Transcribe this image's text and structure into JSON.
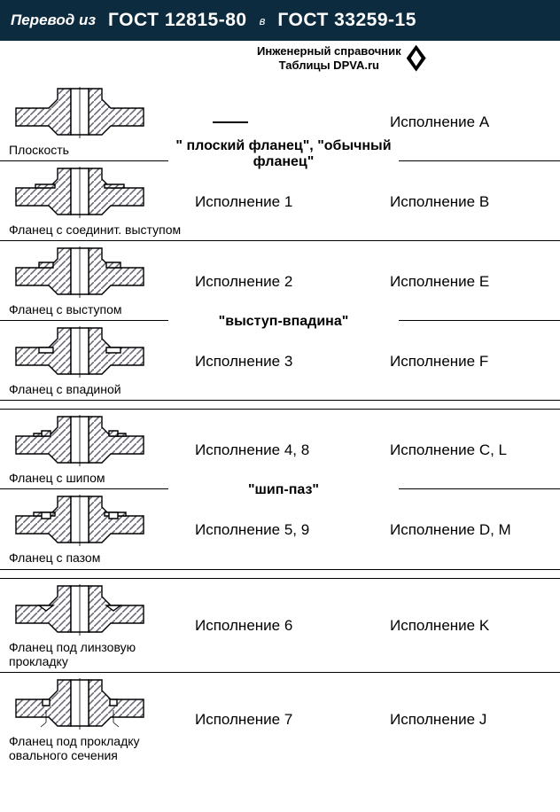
{
  "header": {
    "translateFrom": "Перевод из",
    "gost1": "ГОСТ 12815-80",
    "connector": "в",
    "gost2": "ГОСТ 33259-15"
  },
  "watermark": {
    "line1": "Инженерный справочник",
    "line2": "Таблицы DPVA.ru"
  },
  "rows": [
    {
      "caption": "Плоскость",
      "col2": "—",
      "col3": "Исполнение A",
      "group": "\" плоский фланец\", \"обычный фланец\"",
      "shape": "flat"
    },
    {
      "caption": "Фланец с соединит. выступом",
      "col2": "Исполнение 1",
      "col3": "Исполнение B",
      "shape": "raised"
    },
    {
      "caption": "Фланец с выступом",
      "col2": "Исполнение 2",
      "col3": "Исполнение E",
      "group": "\"выступ-впадина\"",
      "shape": "male"
    },
    {
      "caption": "Фланец с впадиной",
      "col2": "Исполнение  3",
      "col3": "Исполнение  F",
      "shape": "female"
    },
    {
      "caption": "Фланец с шипом",
      "col2": "Исполнение 4, 8",
      "col3": "Исполнение C, L",
      "group": "\"шип-паз\"",
      "shape": "tongue"
    },
    {
      "caption": "Фланец с пазом",
      "col2": "Исполнение  5, 9",
      "col3": "Исполнение  D, M",
      "shape": "groove"
    },
    {
      "caption": "Фланец под линзовую прокладку",
      "col2": "Исполнение  6",
      "col3": "Исполнение  K",
      "shape": "lens"
    },
    {
      "caption": "Фланец под прокладку овального сечения",
      "col2": "Исполнение  7",
      "col3": "Исполнение  J",
      "shape": "ring"
    }
  ],
  "colors": {
    "hatchStroke": "#6b6b7a",
    "outline": "#000000",
    "bg": "#ffffff"
  },
  "svg": {
    "w": 160,
    "h": 60
  }
}
